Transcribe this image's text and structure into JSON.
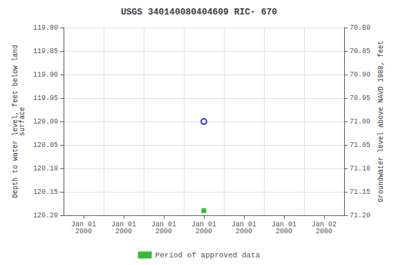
{
  "chart_data": {
    "type": "scatter",
    "title": "USGS 340140080404609 RIC- 670",
    "ylabel": "Depth to water level, feet below land\nsurface",
    "y2label": "Groundwater level above NAVD 1988, feet",
    "categories": [
      "Jan 01\n2000",
      "Jan 01\n2000",
      "Jan 01\n2000",
      "Jan 01\n2000",
      "Jan 01\n2000",
      "Jan 01\n2000",
      "Jan 02\n2000"
    ],
    "series": [
      {
        "color": "#0000cc",
        "marker": "open_circle",
        "values": [
          null,
          null,
          null,
          120.0,
          null,
          null,
          null
        ]
      },
      {
        "name": "Period of approved data",
        "color": "#00aa00",
        "marker": "square",
        "values": [
          null,
          null,
          null,
          120.19,
          null,
          null,
          null
        ]
      }
    ],
    "ylim": [
      120.2,
      119.8
    ],
    "yticks": [
      {
        "value": 119.8,
        "label": "119.80"
      },
      {
        "value": 119.85,
        "label": "119.85"
      },
      {
        "value": 119.9,
        "label": "119.90"
      },
      {
        "value": 119.95,
        "label": "119.95"
      },
      {
        "value": 120.0,
        "label": "120.00"
      },
      {
        "value": 120.05,
        "label": "120.05"
      },
      {
        "value": 120.1,
        "label": "120.10"
      },
      {
        "value": 120.15,
        "label": "120.15"
      },
      {
        "value": 120.2,
        "label": "120.20"
      }
    ],
    "y2lim": [
      71.2,
      70.8
    ],
    "y2ticks": [
      {
        "value": 71.2,
        "label": "71.20"
      },
      {
        "value": 71.15,
        "label": "71.15"
      },
      {
        "value": 71.1,
        "label": "71.10"
      },
      {
        "value": 71.05,
        "label": "71.05"
      },
      {
        "value": 71.0,
        "label": "71.00"
      },
      {
        "value": 70.95,
        "label": "70.95"
      },
      {
        "value": 70.9,
        "label": "70.90"
      },
      {
        "value": 70.85,
        "label": "70.85"
      },
      {
        "value": 70.8,
        "label": "70.80"
      }
    ],
    "grid": true,
    "legend": "bottom"
  }
}
